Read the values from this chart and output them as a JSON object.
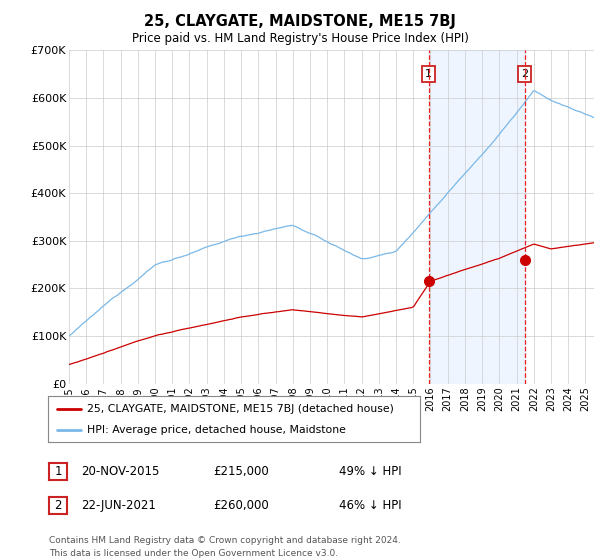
{
  "title": "25, CLAYGATE, MAIDSTONE, ME15 7BJ",
  "subtitle": "Price paid vs. HM Land Registry's House Price Index (HPI)",
  "ylabel_ticks": [
    "£0",
    "£100K",
    "£200K",
    "£300K",
    "£400K",
    "£500K",
    "£600K",
    "£700K"
  ],
  "ylim": [
    0,
    700000
  ],
  "xlim_start": 1995.0,
  "xlim_end": 2025.5,
  "hpi_color": "#7ab8e8",
  "price_color": "#cc0000",
  "marker_color": "#cc0000",
  "vline_color": "#ee2222",
  "shade_color": "#ddeeff",
  "transaction1_date": 2015.89,
  "transaction1_price": 215000,
  "transaction2_date": 2021.47,
  "transaction2_price": 260000,
  "legend_entry1": "25, CLAYGATE, MAIDSTONE, ME15 7BJ (detached house)",
  "legend_entry2": "HPI: Average price, detached house, Maidstone",
  "annotation1_date": "20-NOV-2015",
  "annotation1_price": "£215,000",
  "annotation1_pct": "49% ↓ HPI",
  "annotation2_date": "22-JUN-2021",
  "annotation2_price": "£260,000",
  "annotation2_pct": "46% ↓ HPI",
  "footer": "Contains HM Land Registry data © Crown copyright and database right 2024.\nThis data is licensed under the Open Government Licence v3.0.",
  "background_color": "#ffffff",
  "grid_color": "#cccccc"
}
